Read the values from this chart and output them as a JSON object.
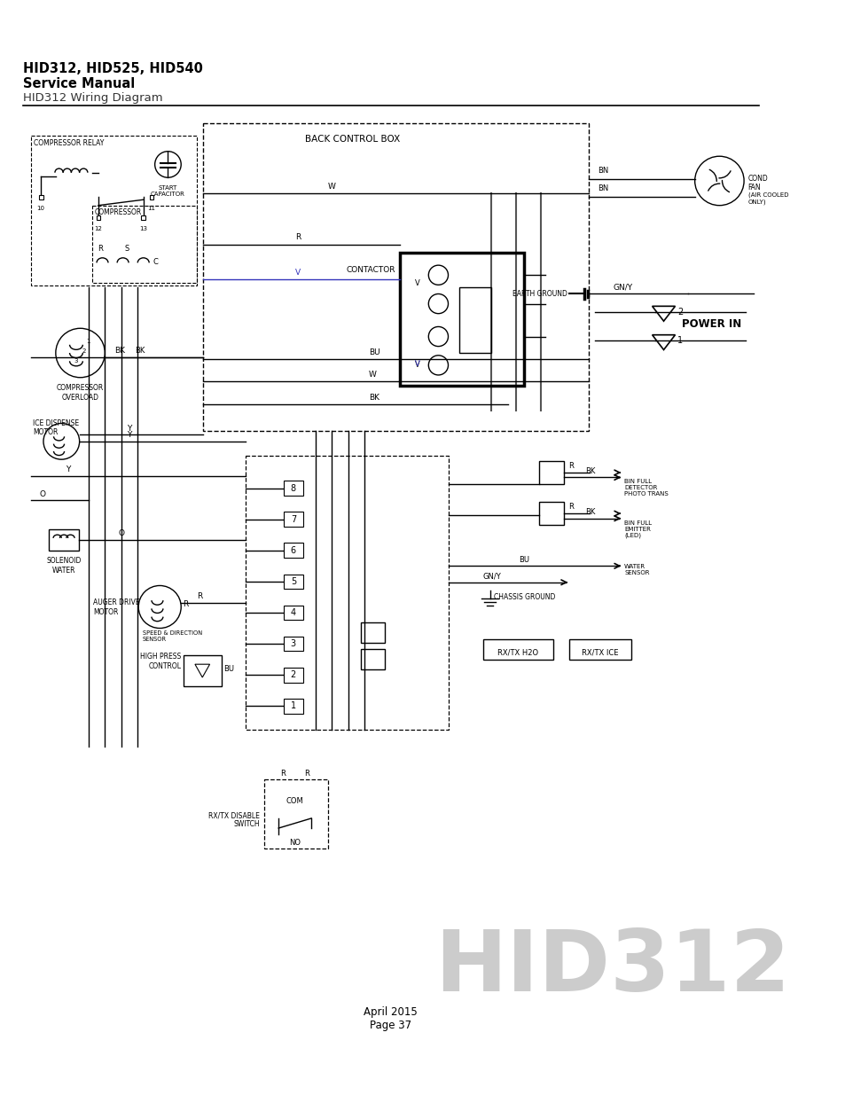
{
  "title_line1": "HID312, HID525, HID540",
  "title_line2": "Service Manual",
  "title_line3": "HID312 Wiring Diagram",
  "footer_line1": "April 2015",
  "footer_line2": "Page 37",
  "hid312_text": "HID312",
  "back_control_box_label": "BACK CONTROL BOX",
  "power_in_label": "POWER IN",
  "contactor_label": "CONTACTOR",
  "compressor_relay_label": "COMPRESSOR RELAY",
  "start_cap_label": "START\nCAPACITOR",
  "compressor_label": "COMPRESSOR",
  "compressor_overload_label": "COMPRESSOR\nOVERLOAD",
  "ice_dispense_label": "ICE DISPENSE\nMOTOR",
  "solenoid_label": "SOLENOID\nWATER",
  "auger_drive_label": "AUGER DRIVE\nMOTOR",
  "speed_sensor_label": "SPEED & DIRECTION\nSENSOR",
  "high_press_label": "HIGH PRESS\nCONTROL",
  "rx_tx_disable_label": "RX/TX DISABLE\nSWITCH",
  "bin_full_detector_label": "BIN FULL\nDETECTOR\nPHOTO TRANS",
  "bin_full_emitter_label": "BIN FULL\nEMITTER\n(LED)",
  "water_sensor_label": "WATER\nSENSOR",
  "chassis_ground_label": "CHASSIS GROUND",
  "earth_ground_label": "EARTH GROUND",
  "cond_fan_label": "COND\nFAN",
  "air_cooled_label": "(AIR COOLED\nONLY)",
  "rx_tx_h2o_label": "RX/TX H2O",
  "rx_tx_ice_label": "RX/TX ICE",
  "bg_color": "#ffffff",
  "line_color": "#000000",
  "blue_line_color": "#3333bb",
  "gray_line_color": "#888888"
}
